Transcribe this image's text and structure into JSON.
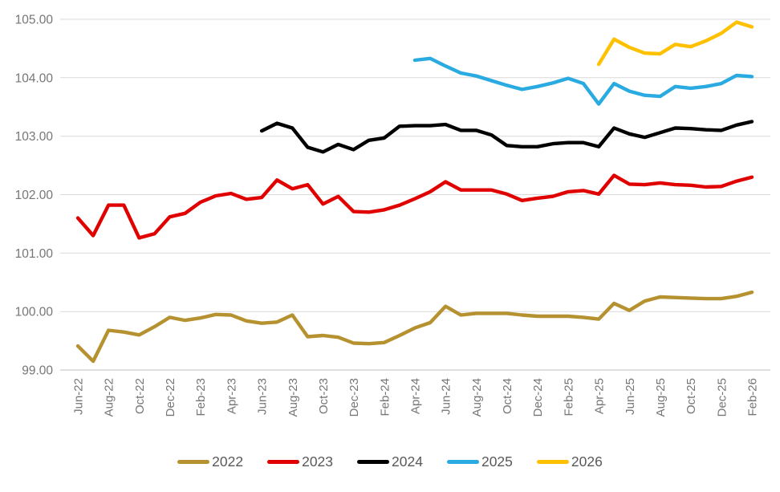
{
  "chart_data": {
    "type": "line",
    "title": "",
    "grid": true,
    "legend_position": "bottom",
    "y_axis": {
      "min": 99,
      "max": 105,
      "step": 1,
      "tick_labels": [
        "99.00",
        "100.00",
        "101.00",
        "102.00",
        "103.00",
        "104.00",
        "105.00"
      ]
    },
    "x_axis": {
      "unit": "month",
      "first_month": "Jun-22",
      "last_month": "Feb-26",
      "total_points": 45,
      "label_every_n_months": 2,
      "tick_labels": [
        "Jun-22",
        "Aug-22",
        "Oct-22",
        "Dec-22",
        "Feb-23",
        "Apr-23",
        "Jun-23",
        "Aug-23",
        "Oct-23",
        "Dec-23",
        "Feb-24",
        "Apr-24",
        "Jun-24",
        "Aug-24",
        "Oct-24",
        "Dec-24",
        "Feb-25",
        "Apr-25",
        "Jun-25",
        "Aug-25",
        "Oct-25",
        "Dec-25",
        "Feb-26"
      ]
    },
    "series": [
      {
        "name": "2022",
        "color": "#B5912F",
        "start_month": "Jun-22",
        "start_index": 0,
        "values": [
          99.41,
          99.15,
          99.68,
          99.65,
          99.6,
          99.74,
          99.9,
          99.85,
          99.89,
          99.95,
          99.94,
          99.84,
          99.8,
          99.82,
          99.94,
          99.57,
          99.59,
          99.56,
          99.46,
          99.45,
          99.47,
          99.59,
          99.72,
          99.81,
          100.09,
          99.94,
          99.97,
          99.97,
          99.97,
          99.94,
          99.92,
          99.92,
          99.92,
          99.9,
          99.87,
          100.14,
          100.02,
          100.18,
          100.25,
          100.24,
          100.23,
          100.22,
          100.22,
          100.26,
          100.33
        ]
      },
      {
        "name": "2023",
        "color": "#E00000",
        "start_month": "Jun-22",
        "start_index": 0,
        "values": [
          101.6,
          101.3,
          101.82,
          101.82,
          101.26,
          101.33,
          101.62,
          101.68,
          101.87,
          101.98,
          102.02,
          101.92,
          101.95,
          102.25,
          102.1,
          102.17,
          101.84,
          101.97,
          101.71,
          101.7,
          101.74,
          101.82,
          101.93,
          102.05,
          102.22,
          102.08,
          102.08,
          102.08,
          102.01,
          101.9,
          101.94,
          101.97,
          102.05,
          102.07,
          102.01,
          102.33,
          102.18,
          102.17,
          102.2,
          102.17,
          102.16,
          102.13,
          102.14,
          102.23,
          102.3
        ]
      },
      {
        "name": "2024",
        "color": "#000000",
        "start_month": "Jun-23",
        "start_index": 12,
        "values": [
          103.09,
          103.22,
          103.14,
          102.81,
          102.73,
          102.86,
          102.77,
          102.93,
          102.97,
          103.17,
          103.18,
          103.18,
          103.2,
          103.1,
          103.1,
          103.02,
          102.84,
          102.82,
          102.82,
          102.87,
          102.89,
          102.89,
          102.82,
          103.14,
          103.04,
          102.98,
          103.06,
          103.14,
          103.13,
          103.11,
          103.1,
          103.19,
          103.25
        ]
      },
      {
        "name": "2025",
        "color": "#29ABE1",
        "start_month": "Apr-24",
        "start_index": 22,
        "values": [
          104.3,
          104.33,
          104.2,
          104.08,
          104.03,
          103.95,
          103.87,
          103.8,
          103.85,
          103.91,
          103.99,
          103.9,
          103.55,
          103.9,
          103.77,
          103.7,
          103.68,
          103.85,
          103.82,
          103.85,
          103.9,
          104.04,
          104.02
        ]
      },
      {
        "name": "2026",
        "color": "#FFC000",
        "start_month": "Apr-25",
        "start_index": 34,
        "values": [
          104.23,
          104.66,
          104.52,
          104.42,
          104.41,
          104.57,
          104.53,
          104.63,
          104.76,
          104.95,
          104.87
        ]
      }
    ]
  }
}
